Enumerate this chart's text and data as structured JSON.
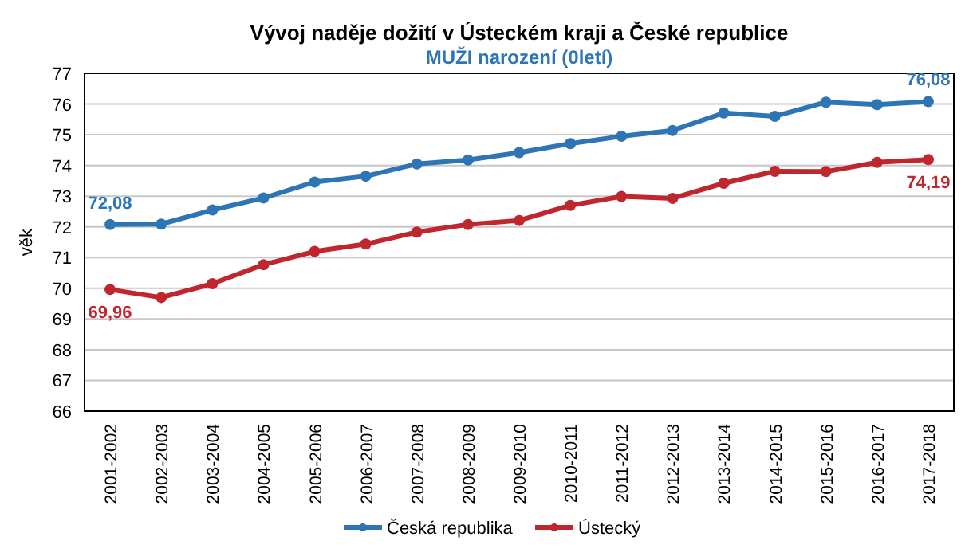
{
  "chart_data": {
    "type": "line",
    "title": "Vývoj naděje dožití v Ústeckém  kraji a České republice",
    "subtitle": "MUŽI narození (0letí)",
    "ylabel": "věk",
    "categories": [
      "2001-2002",
      "2002-2003",
      "2003-2004",
      "2004-2005",
      "2005-2006",
      "2006-2007",
      "2007-2008",
      "2008-2009",
      "2009-2010",
      "2010-2011",
      "2011-2012",
      "2012-2013",
      "2013-2014",
      "2014-2015",
      "2015-2016",
      "2016-2017",
      "2017-2018"
    ],
    "series": [
      {
        "name": "Česká republika",
        "color": "#2e75b6",
        "values": [
          72.08,
          72.09,
          72.55,
          72.94,
          73.46,
          73.65,
          74.05,
          74.18,
          74.42,
          74.71,
          74.95,
          75.14,
          75.71,
          75.6,
          76.06,
          75.98,
          76.08
        ],
        "value_labels": [
          "72,08",
          null,
          null,
          null,
          null,
          null,
          null,
          null,
          null,
          null,
          null,
          null,
          null,
          null,
          null,
          null,
          "76,08"
        ]
      },
      {
        "name": "Ústecký",
        "color": "#c0262d",
        "values": [
          69.96,
          69.7,
          70.15,
          70.77,
          71.2,
          71.44,
          71.83,
          72.08,
          72.21,
          72.7,
          72.99,
          72.93,
          73.42,
          73.81,
          73.8,
          74.1,
          74.19
        ],
        "value_labels": [
          "69,96",
          null,
          null,
          null,
          null,
          null,
          null,
          null,
          null,
          null,
          null,
          null,
          null,
          null,
          null,
          null,
          "74,19"
        ]
      }
    ],
    "ylim": [
      66,
      77
    ],
    "yticks": [
      66,
      67,
      68,
      69,
      70,
      71,
      72,
      73,
      74,
      75,
      76,
      77
    ],
    "grid": "y",
    "legend": "bottom",
    "marker": "circle",
    "line_style": "solid"
  }
}
